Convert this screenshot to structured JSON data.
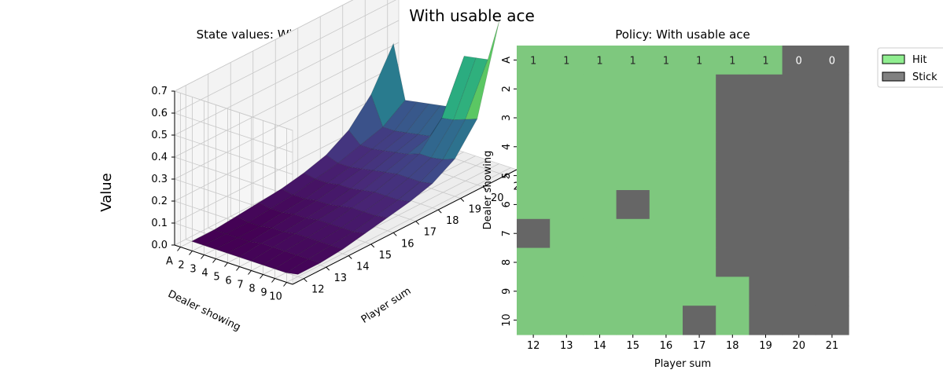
{
  "figure": {
    "title": "With usable ace"
  },
  "chart_data": [
    {
      "type": "surface",
      "title": "State values: With usable ace",
      "xlabel": "Player sum",
      "ylabel": "Dealer showing",
      "zlabel": "Value",
      "x": [
        12,
        13,
        14,
        15,
        16,
        17,
        18,
        19,
        20,
        21
      ],
      "y": [
        "A",
        "2",
        "3",
        "4",
        "5",
        "6",
        "7",
        "8",
        "9",
        "10"
      ],
      "y_ticks_shown": [
        "10",
        "9",
        "8",
        "7",
        "6",
        "5",
        "4",
        "3",
        "2",
        "A"
      ],
      "zticks": [
        "0.0",
        "0.1",
        "0.2",
        "0.3",
        "0.4",
        "0.5",
        "0.6",
        "0.7"
      ],
      "zlim": [
        0,
        0.7
      ],
      "colormap": "viridis",
      "z": [
        [
          0.0,
          0.0,
          0.01,
          0.02,
          0.03,
          0.05,
          0.08,
          0.14,
          0.25,
          0.43
        ],
        [
          0.0,
          0.0,
          0.0,
          0.01,
          0.02,
          0.04,
          0.06,
          0.09,
          0.12,
          0.19
        ],
        [
          0.0,
          0.0,
          0.0,
          0.01,
          0.02,
          0.04,
          0.06,
          0.09,
          0.12,
          0.2
        ],
        [
          0.0,
          0.0,
          0.01,
          0.02,
          0.03,
          0.05,
          0.07,
          0.1,
          0.13,
          0.21
        ],
        [
          0.0,
          0.01,
          0.01,
          0.02,
          0.03,
          0.05,
          0.08,
          0.11,
          0.14,
          0.22
        ],
        [
          0.0,
          0.01,
          0.02,
          0.03,
          0.04,
          0.06,
          0.09,
          0.12,
          0.15,
          0.23
        ],
        [
          0.0,
          0.01,
          0.02,
          0.03,
          0.05,
          0.07,
          0.1,
          0.14,
          0.25,
          0.48
        ],
        [
          0.0,
          0.01,
          0.02,
          0.03,
          0.05,
          0.07,
          0.1,
          0.14,
          0.26,
          0.49
        ],
        [
          0.0,
          0.01,
          0.02,
          0.03,
          0.05,
          0.07,
          0.1,
          0.15,
          0.28,
          0.5
        ],
        [
          0.01,
          0.01,
          0.02,
          0.04,
          0.06,
          0.08,
          0.11,
          0.17,
          0.3,
          0.7
        ]
      ]
    },
    {
      "type": "heatmap",
      "title": "Policy: With usable ace",
      "xlabel": "Player sum",
      "ylabel": "Dealer showing",
      "x": [
        "12",
        "13",
        "14",
        "15",
        "16",
        "17",
        "18",
        "19",
        "20",
        "21"
      ],
      "y": [
        "A",
        "2",
        "3",
        "4",
        "5",
        "6",
        "7",
        "8",
        "9",
        "10"
      ],
      "values": [
        [
          1,
          1,
          1,
          1,
          1,
          1,
          1,
          1,
          0,
          0
        ],
        [
          1,
          1,
          1,
          1,
          1,
          1,
          0,
          0,
          0,
          0
        ],
        [
          1,
          1,
          1,
          1,
          1,
          1,
          0,
          0,
          0,
          0
        ],
        [
          1,
          1,
          1,
          1,
          1,
          1,
          0,
          0,
          0,
          0
        ],
        [
          1,
          1,
          1,
          1,
          1,
          1,
          0,
          0,
          0,
          0
        ],
        [
          1,
          1,
          1,
          0,
          1,
          1,
          0,
          0,
          0,
          0
        ],
        [
          0,
          1,
          1,
          1,
          1,
          1,
          0,
          0,
          0,
          0
        ],
        [
          1,
          1,
          1,
          1,
          1,
          1,
          0,
          0,
          0,
          0
        ],
        [
          1,
          1,
          1,
          1,
          1,
          1,
          1,
          0,
          0,
          0
        ],
        [
          1,
          1,
          1,
          1,
          1,
          0,
          1,
          0,
          0,
          0
        ]
      ],
      "annotated_rows": [
        0
      ],
      "colors": {
        "1": "#7ec87e",
        "0": "#666666"
      },
      "legend": [
        {
          "label": "Hit",
          "color": "#90ee90"
        },
        {
          "label": "Stick",
          "color": "#808080"
        }
      ],
      "legend_position": "upper-right-outside"
    }
  ]
}
